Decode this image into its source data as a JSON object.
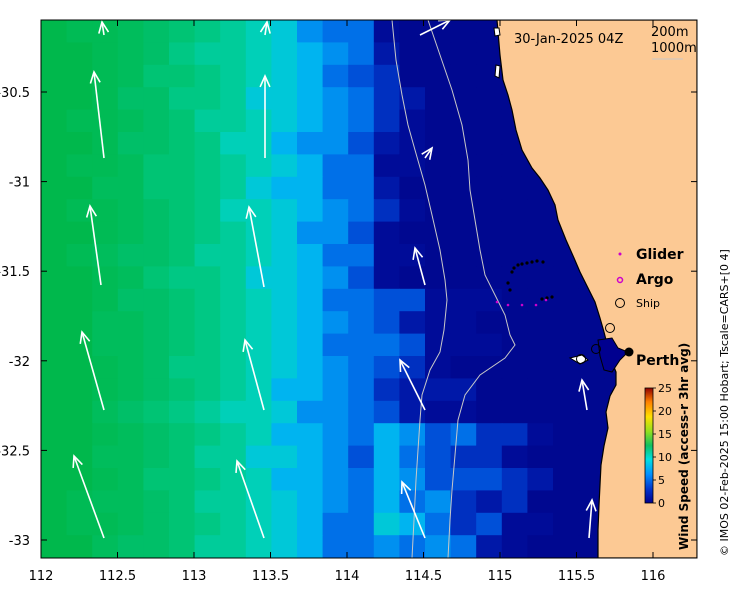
{
  "map": {
    "timestamp": "30-Jan-2025 04Z",
    "isobath_labels": [
      "200m",
      "1000m"
    ],
    "x_ticks": [
      "112",
      "112.5",
      "113",
      "113.5",
      "114",
      "114.5",
      "115",
      "115.5",
      "116"
    ],
    "y_ticks": [
      "-30.5",
      "-31",
      "-31.5",
      "-32",
      "-32.5",
      "-33"
    ],
    "city_label": "Perth",
    "legend": {
      "glider": "Glider",
      "argo": "Argo",
      "ship": "Ship"
    },
    "colorbar": {
      "title": "Wind Speed (access-r 3hr avg)",
      "ticks": [
        "25",
        "20",
        "15",
        "10",
        "5",
        "0"
      ],
      "range": [
        0,
        25
      ]
    },
    "credit": "© IMOS 02-Feb-2025 15:00 Hobart; Tscale=CARS+[0 4]",
    "colors": {
      "land": "#fcc994",
      "glider": "#cc00cc",
      "argo": "#cc00cc",
      "arrow": "#ffffff"
    }
  }
}
